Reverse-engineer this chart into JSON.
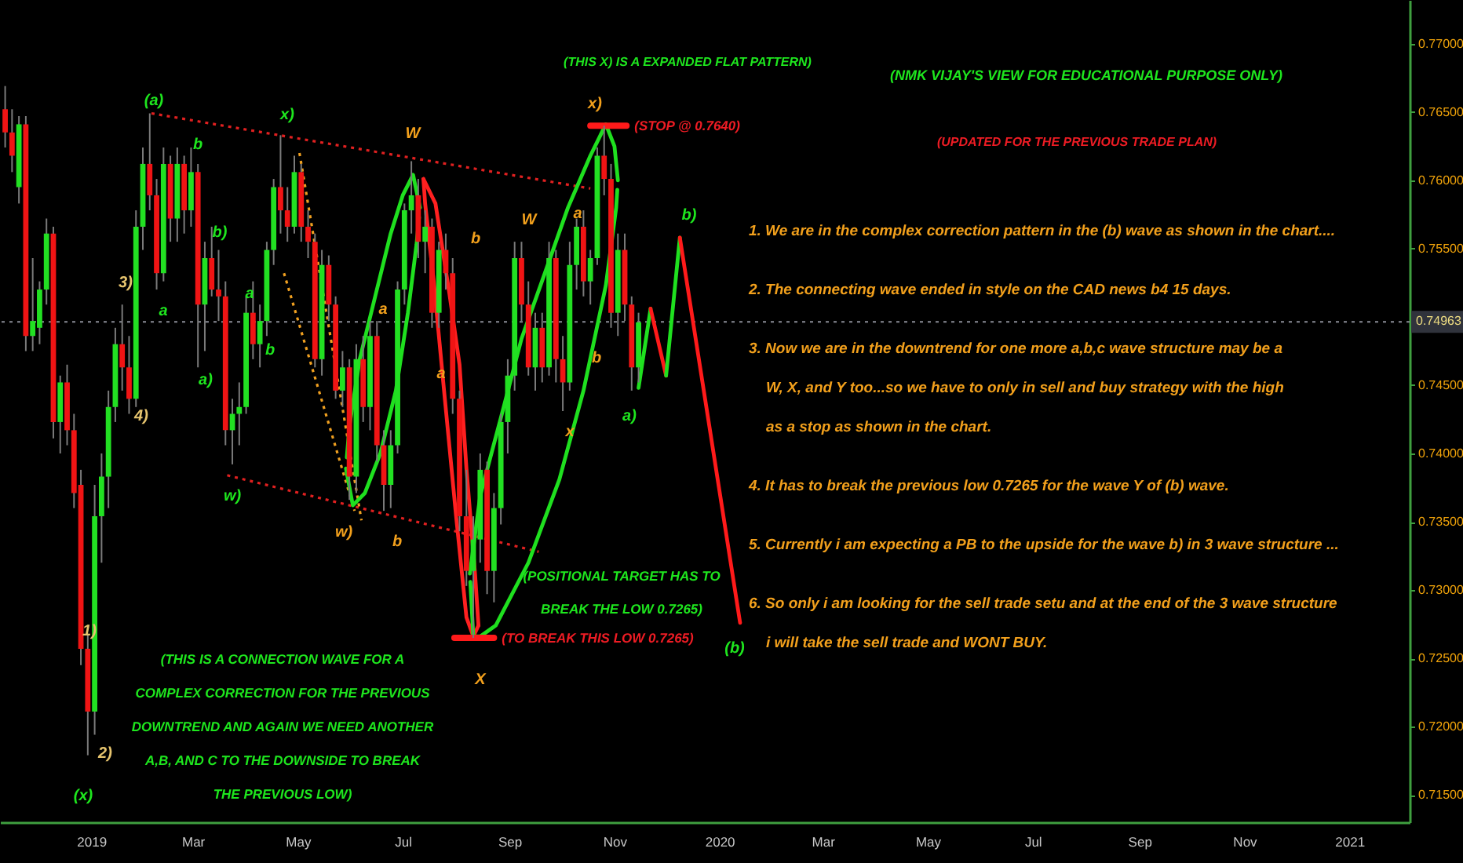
{
  "chart_data": {
    "type": "candlestick",
    "title": "(NMK VIJAY'S VIEW FOR EDUCATIONAL PURPOSE ONLY)",
    "subtitle": "(UPDATED FOR THE PREVIOUS TRADE PLAN)",
    "x": [
      "2018-11-12",
      "2018-11-16",
      "2018-11-20",
      "2018-11-24",
      "2018-11-28",
      "2018-12-02",
      "2018-12-06",
      "2018-12-10",
      "2018-12-14",
      "2018-12-18",
      "2018-12-22",
      "2018-12-26",
      "2018-12-30",
      "2019-01-03",
      "2019-01-07",
      "2019-01-11",
      "2019-01-15",
      "2019-01-19",
      "2019-01-23",
      "2019-01-27",
      "2019-01-31",
      "2019-02-04",
      "2019-02-08",
      "2019-02-12",
      "2019-02-16",
      "2019-02-20",
      "2019-02-24",
      "2019-02-28",
      "2019-03-04",
      "2019-03-08",
      "2019-03-12",
      "2019-03-16",
      "2019-03-20",
      "2019-03-24",
      "2019-03-28",
      "2019-04-01",
      "2019-04-05",
      "2019-04-09",
      "2019-04-13",
      "2019-04-17",
      "2019-04-21",
      "2019-04-25",
      "2019-04-29",
      "2019-05-03",
      "2019-05-07",
      "2019-05-11",
      "2019-05-15",
      "2019-05-19",
      "2019-05-23",
      "2019-05-27",
      "2019-05-31",
      "2019-06-04",
      "2019-06-08",
      "2019-06-12",
      "2019-06-16",
      "2019-06-20",
      "2019-06-24",
      "2019-06-28",
      "2019-07-02",
      "2019-07-06",
      "2019-07-10",
      "2019-07-14",
      "2019-07-18",
      "2019-07-22",
      "2019-07-26",
      "2019-07-30",
      "2019-08-03",
      "2019-08-07",
      "2019-08-11",
      "2019-08-15",
      "2019-08-19",
      "2019-08-23",
      "2019-08-27",
      "2019-08-31",
      "2019-09-04",
      "2019-09-08",
      "2019-09-12",
      "2019-09-16",
      "2019-09-20",
      "2019-09-24",
      "2019-09-28",
      "2019-10-02",
      "2019-10-06",
      "2019-10-10",
      "2019-10-14",
      "2019-10-18",
      "2019-10-22",
      "2019-10-26",
      "2019-10-30",
      "2019-11-03",
      "2019-11-07",
      "2019-11-11",
      "2019-11-15"
    ],
    "ohlc": [
      [
        0.7652,
        0.7669,
        0.7624,
        0.7635
      ],
      [
        0.7635,
        0.7652,
        0.7606,
        0.7618
      ],
      [
        0.7595,
        0.7647,
        0.7583,
        0.7641
      ],
      [
        0.7641,
        0.7647,
        0.7475,
        0.7486
      ],
      [
        0.7486,
        0.7543,
        0.7475,
        0.7497
      ],
      [
        0.7492,
        0.7526,
        0.748,
        0.752
      ],
      [
        0.752,
        0.7572,
        0.7509,
        0.7561
      ],
      [
        0.7561,
        0.7566,
        0.7411,
        0.7423
      ],
      [
        0.7423,
        0.7457,
        0.74,
        0.7452
      ],
      [
        0.7452,
        0.7465,
        0.7406,
        0.7417
      ],
      [
        0.7417,
        0.7429,
        0.736,
        0.7371
      ],
      [
        0.7377,
        0.7388,
        0.7245,
        0.7257
      ],
      [
        0.7257,
        0.7268,
        0.7179,
        0.7211
      ],
      [
        0.7211,
        0.7377,
        0.7194,
        0.7354
      ],
      [
        0.7354,
        0.74,
        0.732,
        0.7383
      ],
      [
        0.7383,
        0.7446,
        0.736,
        0.7434
      ],
      [
        0.7434,
        0.7492,
        0.7423,
        0.748
      ],
      [
        0.748,
        0.7509,
        0.7446,
        0.7463
      ],
      [
        0.7463,
        0.7486,
        0.7429,
        0.744
      ],
      [
        0.744,
        0.7578,
        0.7434,
        0.7566
      ],
      [
        0.7566,
        0.7624,
        0.7549,
        0.7612
      ],
      [
        0.7612,
        0.7649,
        0.7578,
        0.7589
      ],
      [
        0.7589,
        0.7601,
        0.752,
        0.7532
      ],
      [
        0.7532,
        0.7624,
        0.7526,
        0.7612
      ],
      [
        0.7612,
        0.7618,
        0.7555,
        0.7572
      ],
      [
        0.7572,
        0.7624,
        0.7555,
        0.7612
      ],
      [
        0.7612,
        0.7618,
        0.7561,
        0.7578
      ],
      [
        0.7578,
        0.7624,
        0.7566,
        0.7606
      ],
      [
        0.7606,
        0.7612,
        0.7463,
        0.7509
      ],
      [
        0.7509,
        0.7555,
        0.7475,
        0.7543
      ],
      [
        0.7543,
        0.7566,
        0.7515,
        0.752
      ],
      [
        0.752,
        0.7549,
        0.7497,
        0.7515
      ],
      [
        0.7515,
        0.7526,
        0.7406,
        0.7417
      ],
      [
        0.7417,
        0.744,
        0.7392,
        0.7429
      ],
      [
        0.7429,
        0.7452,
        0.7406,
        0.7434
      ],
      [
        0.7434,
        0.7515,
        0.7429,
        0.7503
      ],
      [
        0.7503,
        0.7526,
        0.7469,
        0.748
      ],
      [
        0.748,
        0.7509,
        0.7463,
        0.7497
      ],
      [
        0.7497,
        0.7555,
        0.7486,
        0.7549
      ],
      [
        0.7549,
        0.7601,
        0.7538,
        0.7595
      ],
      [
        0.7595,
        0.7633,
        0.7561,
        0.7578
      ],
      [
        0.7578,
        0.7595,
        0.7555,
        0.7566
      ],
      [
        0.7566,
        0.7618,
        0.7561,
        0.7606
      ],
      [
        0.7606,
        0.7612,
        0.7555,
        0.7566
      ],
      [
        0.7566,
        0.7578,
        0.7543,
        0.7555
      ],
      [
        0.7555,
        0.7561,
        0.7463,
        0.7469
      ],
      [
        0.7469,
        0.7549,
        0.7457,
        0.7538
      ],
      [
        0.7538,
        0.7545,
        0.7497,
        0.7509
      ],
      [
        0.7509,
        0.7515,
        0.744,
        0.7446
      ],
      [
        0.7446,
        0.7475,
        0.7434,
        0.7463
      ],
      [
        0.7463,
        0.7469,
        0.7366,
        0.7383
      ],
      [
        0.7383,
        0.748,
        0.7371,
        0.7469
      ],
      [
        0.7469,
        0.7486,
        0.7423,
        0.7434
      ],
      [
        0.7434,
        0.7497,
        0.7417,
        0.7486
      ],
      [
        0.7486,
        0.7497,
        0.7394,
        0.7406
      ],
      [
        0.7406,
        0.7417,
        0.7358,
        0.7377
      ],
      [
        0.7377,
        0.7417,
        0.736,
        0.7406
      ],
      [
        0.7406,
        0.7526,
        0.74,
        0.752
      ],
      [
        0.752,
        0.7583,
        0.7509,
        0.7578
      ],
      [
        0.7578,
        0.7614,
        0.7561,
        0.7589
      ],
      [
        0.7589,
        0.7601,
        0.7543,
        0.7555
      ],
      [
        0.7555,
        0.7578,
        0.7532,
        0.7566
      ],
      [
        0.7566,
        0.7572,
        0.7492,
        0.7503
      ],
      [
        0.7503,
        0.7555,
        0.7492,
        0.7549
      ],
      [
        0.7549,
        0.7561,
        0.752,
        0.7532
      ],
      [
        0.7532,
        0.7543,
        0.7429,
        0.744
      ],
      [
        0.744,
        0.7446,
        0.7343,
        0.7354
      ],
      [
        0.7354,
        0.7388,
        0.7303,
        0.7314
      ],
      [
        0.7314,
        0.7354,
        0.7265,
        0.7337
      ],
      [
        0.7337,
        0.74,
        0.732,
        0.7388
      ],
      [
        0.7388,
        0.7394,
        0.7297,
        0.7314
      ],
      [
        0.7314,
        0.7371,
        0.7291,
        0.736
      ],
      [
        0.736,
        0.7429,
        0.7348,
        0.7423
      ],
      [
        0.7423,
        0.7469,
        0.74,
        0.7457
      ],
      [
        0.7457,
        0.7555,
        0.7446,
        0.7543
      ],
      [
        0.7543,
        0.7555,
        0.7497,
        0.7509
      ],
      [
        0.7509,
        0.7526,
        0.7457,
        0.7463
      ],
      [
        0.7463,
        0.7503,
        0.7446,
        0.7492
      ],
      [
        0.7492,
        0.7503,
        0.7452,
        0.7463
      ],
      [
        0.7463,
        0.7555,
        0.7457,
        0.7543
      ],
      [
        0.7543,
        0.7549,
        0.7452,
        0.7469
      ],
      [
        0.7469,
        0.7486,
        0.7431,
        0.7452
      ],
      [
        0.7452,
        0.7555,
        0.7446,
        0.7538
      ],
      [
        0.7538,
        0.7572,
        0.752,
        0.7566
      ],
      [
        0.7566,
        0.7578,
        0.7515,
        0.7526
      ],
      [
        0.7526,
        0.7549,
        0.7509,
        0.7543
      ],
      [
        0.7543,
        0.7624,
        0.7538,
        0.7618
      ],
      [
        0.7618,
        0.764,
        0.7589,
        0.7601
      ],
      [
        0.7601,
        0.7612,
        0.7492,
        0.7503
      ],
      [
        0.7503,
        0.7561,
        0.7486,
        0.7549
      ],
      [
        0.7549,
        0.7561,
        0.7497,
        0.7509
      ],
      [
        0.7509,
        0.7515,
        0.7446,
        0.7463
      ],
      [
        0.7463,
        0.7503,
        0.7452,
        0.7496
      ]
    ],
    "colors": [
      "#f01414",
      "#f01414",
      "#22e022",
      "#f01414",
      "#22e022",
      "#22e022",
      "#22e022",
      "#f01414",
      "#22e022",
      "#f01414",
      "#f01414",
      "#f01414",
      "#f01414",
      "#22e022",
      "#22e022",
      "#22e022",
      "#22e022",
      "#f01414",
      "#f01414",
      "#22e022",
      "#22e022",
      "#f01414",
      "#f01414",
      "#22e022",
      "#f01414",
      "#22e022",
      "#f01414",
      "#22e022",
      "#f01414",
      "#22e022",
      "#f01414",
      "#f01414",
      "#f01414",
      "#22e022",
      "#22e022",
      "#22e022",
      "#f01414",
      "#22e022",
      "#22e022",
      "#22e022",
      "#f01414",
      "#f01414",
      "#22e022",
      "#f01414",
      "#f01414",
      "#f01414",
      "#22e022",
      "#f01414",
      "#f01414",
      "#22e022",
      "#f01414",
      "#22e022",
      "#f01414",
      "#22e022",
      "#f01414",
      "#f01414",
      "#22e022",
      "#22e022",
      "#22e022",
      "#22e022",
      "#f01414",
      "#22e022",
      "#f01414",
      "#22e022",
      "#f01414",
      "#f01414",
      "#f01414",
      "#f01414",
      "#22e022",
      "#22e022",
      "#f01414",
      "#22e022",
      "#22e022",
      "#22e022",
      "#22e022",
      "#f01414",
      "#f01414",
      "#22e022",
      "#f01414",
      "#22e022",
      "#f01414",
      "#f01414",
      "#22e022",
      "#22e022",
      "#f01414",
      "#22e022",
      "#22e022",
      "#f01414",
      "#f01414",
      "#22e022",
      "#f01414",
      "#f01414",
      "#22e022"
    ],
    "series": [
      {
        "type": "line",
        "color": "#e02020",
        "line_style": "dotted",
        "x": [
          "2019-02-05",
          "2019-10-18"
        ],
        "values": [
          0.7649,
          0.7594
        ]
      },
      {
        "type": "line",
        "color": "#e02020",
        "line_style": "dotted",
        "x": [
          "2019-03-21",
          "2019-09-18"
        ],
        "values": [
          0.7384,
          0.7328
        ]
      },
      {
        "type": "line",
        "color": "#f0a020",
        "line_style": "dotted",
        "x": [
          "2019-05-02",
          "2019-06-07"
        ],
        "values": [
          0.762,
          0.7351
        ]
      },
      {
        "type": "line",
        "color": "#f0a020",
        "line_style": "dotted",
        "x": [
          "2019-04-23",
          "2019-06-03"
        ],
        "values": [
          0.7532,
          0.7358
        ]
      },
      {
        "type": "line",
        "color": "#1fe01f",
        "x": [
          "2019-05-29T12:00",
          "2019-05-31",
          "2019-06-06",
          "2019-06-15",
          "2019-06-24",
          "2019-07-01",
          "2019-07-07",
          "2019-07-11"
        ],
        "values": [
          0.7397,
          0.742,
          0.7469,
          0.7515,
          0.7561,
          0.7589,
          0.7604,
          0.758
        ]
      },
      {
        "type": "line",
        "color": "#1fe01f",
        "x": [
          "2019-05-29",
          "2019-06-02",
          "2019-06-09",
          "2019-06-18",
          "2019-06-27",
          "2019-07-04",
          "2019-07-09",
          "2019-07-10T12:00"
        ],
        "values": [
          0.7389,
          0.7362,
          0.7371,
          0.74,
          0.7446,
          0.7503,
          0.7553,
          0.7573
        ]
      },
      {
        "type": "line",
        "color": "#ff2020",
        "x": [
          "2019-07-13",
          "2019-07-20",
          "2019-07-28",
          "2019-08-03",
          "2019-08-07",
          "2019-08-12",
          "2019-08-14"
        ],
        "values": [
          0.7601,
          0.7583,
          0.7518,
          0.7465,
          0.7389,
          0.7312,
          0.7274
        ]
      },
      {
        "type": "line",
        "color": "#ff2020",
        "x": [
          "2019-07-13",
          "2019-07-14",
          "2019-07-19",
          "2019-07-25",
          "2019-08-01",
          "2019-08-07",
          "2019-08-11",
          "2019-08-14"
        ],
        "values": [
          0.7601,
          0.7583,
          0.7526,
          0.7446,
          0.7354,
          0.728,
          0.7266,
          0.7274
        ]
      },
      {
        "type": "line",
        "color": "#1fe01f",
        "x": [
          "2019-08-09",
          "2019-08-15",
          "2019-08-27",
          "2019-09-08",
          "2019-09-21",
          "2019-10-05",
          "2019-10-18",
          "2019-10-27",
          "2019-11-01",
          "2019-11-03"
        ],
        "values": [
          0.7312,
          0.7369,
          0.7426,
          0.7484,
          0.753,
          0.758,
          0.7618,
          0.7641,
          0.7625,
          0.76
        ]
      },
      {
        "type": "line",
        "color": "#1fe01f",
        "x": [
          "2019-08-09T06:00",
          "2019-08-11",
          "2019-08-15",
          "2019-08-24",
          "2019-09-12",
          "2019-09-30",
          "2019-10-14",
          "2019-10-27",
          "2019-11-02",
          "2019-11-02T16:00"
        ],
        "values": [
          0.7306,
          0.7266,
          0.7266,
          0.7274,
          0.732,
          0.7381,
          0.7446,
          0.7523,
          0.758,
          0.7593
        ]
      },
      {
        "type": "line",
        "color": "#ff1a1a",
        "x": [
          "2019-10-18",
          "2019-11-08"
        ],
        "values": [
          0.764,
          0.764
        ]
      },
      {
        "type": "line",
        "color": "#ff1a1a",
        "x": [
          "2019-07-31",
          "2019-08-23"
        ],
        "values": [
          0.7265,
          0.7265
        ]
      },
      {
        "type": "line",
        "color": "#1fe01f",
        "x": [
          "2019-11-15",
          "2019-11-22"
        ],
        "values": [
          0.7448,
          0.7506
        ]
      },
      {
        "type": "line",
        "color": "#ff1a1a",
        "x": [
          "2019-11-22",
          "2019-12-01"
        ],
        "values": [
          0.7506,
          0.7457
        ]
      },
      {
        "type": "line",
        "color": "#1fe01f",
        "x": [
          "2019-12-01",
          "2019-12-09"
        ],
        "values": [
          0.7457,
          0.7558
        ]
      },
      {
        "type": "line",
        "color": "#ff1a1a",
        "x": [
          "2019-12-09",
          "2020-01-13"
        ],
        "values": [
          0.7558,
          0.7276
        ]
      }
    ],
    "xlim": [
      "2018-11-09",
      "2021-02-05"
    ],
    "xticks": [
      {
        "value": "2019-01",
        "label": "2019"
      },
      {
        "value": "2019-03",
        "label": "Mar"
      },
      {
        "value": "2019-05",
        "label": "May"
      },
      {
        "value": "2019-07",
        "label": "Jul"
      },
      {
        "value": "2019-09",
        "label": "Sep"
      },
      {
        "value": "2019-11",
        "label": "Nov"
      },
      {
        "value": "2020-01",
        "label": "2020"
      },
      {
        "value": "2020-03",
        "label": "Mar"
      },
      {
        "value": "2020-05",
        "label": "May"
      },
      {
        "value": "2020-07",
        "label": "Jul"
      },
      {
        "value": "2020-09",
        "label": "Sep"
      },
      {
        "value": "2020-11",
        "label": "Nov"
      },
      {
        "value": "2021-01",
        "label": "2021"
      }
    ],
    "ylim": [
      0.713,
      0.7732
    ],
    "yticks": [
      {
        "value": 0.715,
        "label": "0.71500"
      },
      {
        "value": 0.72,
        "label": "0.72000"
      },
      {
        "value": 0.725,
        "label": "0.72500"
      },
      {
        "value": 0.73,
        "label": "0.73000"
      },
      {
        "value": 0.735,
        "label": "0.73500"
      },
      {
        "value": 0.74,
        "label": "0.74000"
      },
      {
        "value": 0.745,
        "label": "0.74500"
      },
      {
        "value": 0.755,
        "label": "0.75500"
      },
      {
        "value": 0.76,
        "label": "0.76000"
      },
      {
        "value": 0.765,
        "label": "0.76500"
      },
      {
        "value": 0.77,
        "label": "0.77000"
      }
    ],
    "ref_lines": [
      {
        "axis": "y",
        "value": 0.74963,
        "label": "0.74963",
        "color": "#8a8d96",
        "line_style": "dotted"
      }
    ],
    "annotations": [
      {
        "text": "(STOP @ 0.7640)",
        "x": "2019-11-08",
        "y": 0.764
      },
      {
        "text": "(TO BREAK THIS LOW 0.7265)",
        "x": "2019-08-23",
        "y": 0.7265
      },
      "(a)",
      "b",
      "x)",
      "b)",
      "3)",
      "a",
      "a",
      "b",
      "a)",
      "4)",
      "w)",
      "w)",
      "a",
      "1)",
      "2)",
      "(x)",
      "W",
      "b",
      "a",
      "b",
      "X",
      "W",
      "a",
      "b",
      "x",
      "x)",
      "a)",
      "b)",
      "(b)",
      "(THIS X) IS A EXPANDED FLAT PATTERN)",
      "(POSITIONAL TARGET HAS TO\nBREAK THE LOW 0.7265)",
      "(THIS IS A CONNECTION WAVE FOR A\nCOMPLEX CORRECTION FOR THE PREVIOUS\nDOWNTREND AND AGAIN WE NEED ANOTHER\nA,B, AND C TO THE DOWNSIDE TO BREAK\nTHE PREVIOUS LOW)",
      "1. We are in the complex correction pattern in the (b) wave as shown in the chart....",
      "2. The connecting wave ended in style on the CAD news b4 15 days.",
      "3. Now we are in the downtrend for one more a,b,c wave structure may be a\nW, X, and Y too...so we have to only in sell and buy strategy with the high\nas a stop as shown in the chart.",
      "4. It has to break the previous low 0.7265 for the wave Y of (b) wave.",
      "5. Currently i am expecting a PB to the upside for the wave b) in 3 wave structure ...",
      "6. So only i am looking for the sell trade setu and at the end of the 3 wave structure\ni will take the sell trade and WONT BUY."
    ]
  }
}
